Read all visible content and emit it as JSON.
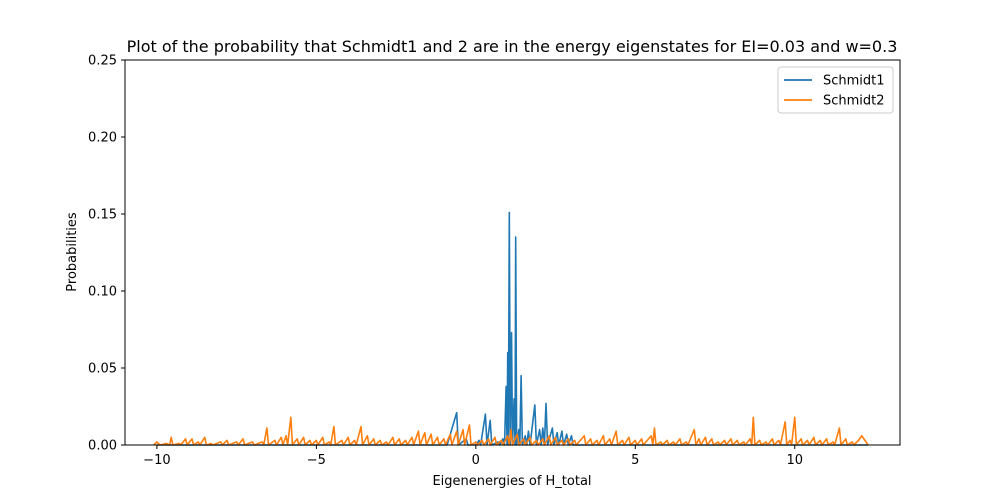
{
  "chart_data": {
    "type": "line",
    "title": "Plot of the probability that Schmidt1 and 2 are in the energy eigenstates for EI=0.03 and w=0.3",
    "xlabel": "Eigenenergies of H_total",
    "ylabel": "Probabilities",
    "xlim": [
      -11.0,
      13.3
    ],
    "ylim": [
      0,
      0.25
    ],
    "xticks": [
      -10,
      -5,
      0,
      5,
      10
    ],
    "xtick_labels": [
      "−10",
      "−5",
      "0",
      "5",
      "10"
    ],
    "yticks": [
      0.0,
      0.05,
      0.1,
      0.15,
      0.2,
      0.25
    ],
    "ytick_labels": [
      "0.00",
      "0.05",
      "0.10",
      "0.15",
      "0.20",
      "0.25"
    ],
    "grid": false,
    "legend_position": "top-right",
    "series": [
      {
        "name": "Schmidt1",
        "color": "#1f77b4",
        "points": [
          [
            -10.0,
            0.0
          ],
          [
            -6.0,
            0.0
          ],
          [
            -3.0,
            0.0
          ],
          [
            -1.5,
            0.0
          ],
          [
            -0.9,
            0.0
          ],
          [
            -0.6,
            0.021
          ],
          [
            -0.55,
            0.0
          ],
          [
            -0.3,
            0.004
          ],
          [
            -0.25,
            0.0
          ],
          [
            0.0,
            0.0
          ],
          [
            0.1,
            0.003
          ],
          [
            0.15,
            0.0
          ],
          [
            0.3,
            0.02
          ],
          [
            0.35,
            0.0
          ],
          [
            0.45,
            0.016
          ],
          [
            0.5,
            0.0
          ],
          [
            0.7,
            0.002
          ],
          [
            0.75,
            0.0
          ],
          [
            0.85,
            0.004
          ],
          [
            0.9,
            0.0
          ],
          [
            0.95,
            0.038
          ],
          [
            0.98,
            0.0
          ],
          [
            1.0,
            0.06
          ],
          [
            1.02,
            0.0
          ],
          [
            1.05,
            0.151
          ],
          [
            1.08,
            0.0
          ],
          [
            1.12,
            0.073
          ],
          [
            1.15,
            0.0
          ],
          [
            1.2,
            0.03
          ],
          [
            1.23,
            0.0
          ],
          [
            1.25,
            0.135
          ],
          [
            1.28,
            0.0
          ],
          [
            1.35,
            0.01
          ],
          [
            1.38,
            0.0
          ],
          [
            1.42,
            0.045
          ],
          [
            1.46,
            0.0
          ],
          [
            1.55,
            0.006
          ],
          [
            1.6,
            0.0
          ],
          [
            1.65,
            0.009
          ],
          [
            1.7,
            0.0
          ],
          [
            1.85,
            0.026
          ],
          [
            1.9,
            0.0
          ],
          [
            2.0,
            0.01
          ],
          [
            2.05,
            0.0
          ],
          [
            2.1,
            0.011
          ],
          [
            2.15,
            0.0
          ],
          [
            2.2,
            0.027
          ],
          [
            2.25,
            0.0
          ],
          [
            2.4,
            0.011
          ],
          [
            2.45,
            0.0
          ],
          [
            2.55,
            0.008
          ],
          [
            2.6,
            0.0
          ],
          [
            2.7,
            0.009
          ],
          [
            2.75,
            0.0
          ],
          [
            2.85,
            0.007
          ],
          [
            2.9,
            0.0
          ],
          [
            3.0,
            0.006
          ],
          [
            3.05,
            0.0
          ],
          [
            3.4,
            0.0
          ],
          [
            4.0,
            0.0
          ],
          [
            8.0,
            0.0
          ],
          [
            12.3,
            0.0
          ]
        ]
      },
      {
        "name": "Schmidt2",
        "color": "#ff7f0e",
        "points": [
          [
            -10.1,
            0.0
          ],
          [
            -10.0,
            0.002
          ],
          [
            -9.9,
            0.0
          ],
          [
            -9.7,
            0.001
          ],
          [
            -9.6,
            0.0
          ],
          [
            -9.55,
            0.005
          ],
          [
            -9.5,
            0.0
          ],
          [
            -9.3,
            0.001
          ],
          [
            -9.25,
            0.0
          ],
          [
            -9.1,
            0.004
          ],
          [
            -9.05,
            0.0
          ],
          [
            -8.9,
            0.004
          ],
          [
            -8.85,
            0.0
          ],
          [
            -8.7,
            0.002
          ],
          [
            -8.65,
            0.0
          ],
          [
            -8.5,
            0.005
          ],
          [
            -8.45,
            0.0
          ],
          [
            -8.3,
            0.001
          ],
          [
            -8.25,
            0.0
          ],
          [
            -8.0,
            0.002
          ],
          [
            -7.95,
            0.0
          ],
          [
            -7.8,
            0.003
          ],
          [
            -7.75,
            0.0
          ],
          [
            -7.5,
            0.002
          ],
          [
            -7.45,
            0.0
          ],
          [
            -7.3,
            0.004
          ],
          [
            -7.25,
            0.0
          ],
          [
            -7.0,
            0.002
          ],
          [
            -6.95,
            0.0
          ],
          [
            -6.7,
            0.002
          ],
          [
            -6.65,
            0.0
          ],
          [
            -6.55,
            0.011
          ],
          [
            -6.5,
            0.0
          ],
          [
            -6.3,
            0.003
          ],
          [
            -6.25,
            0.0
          ],
          [
            -6.1,
            0.005
          ],
          [
            -6.05,
            0.0
          ],
          [
            -5.95,
            0.006
          ],
          [
            -5.9,
            0.0
          ],
          [
            -5.8,
            0.018
          ],
          [
            -5.75,
            0.0
          ],
          [
            -5.6,
            0.004
          ],
          [
            -5.55,
            0.0
          ],
          [
            -5.4,
            0.005
          ],
          [
            -5.35,
            0.0
          ],
          [
            -5.2,
            0.003
          ],
          [
            -5.15,
            0.0
          ],
          [
            -5.0,
            0.003
          ],
          [
            -4.95,
            0.0
          ],
          [
            -4.8,
            0.005
          ],
          [
            -4.75,
            0.0
          ],
          [
            -4.6,
            0.002
          ],
          [
            -4.55,
            0.0
          ],
          [
            -4.45,
            0.012
          ],
          [
            -4.4,
            0.0
          ],
          [
            -4.2,
            0.003
          ],
          [
            -4.15,
            0.0
          ],
          [
            -4.0,
            0.005
          ],
          [
            -3.95,
            0.0
          ],
          [
            -3.8,
            0.003
          ],
          [
            -3.75,
            0.0
          ],
          [
            -3.6,
            0.012
          ],
          [
            -3.55,
            0.0
          ],
          [
            -3.4,
            0.006
          ],
          [
            -3.35,
            0.0
          ],
          [
            -3.2,
            0.004
          ],
          [
            -3.15,
            0.0
          ],
          [
            -3.0,
            0.003
          ],
          [
            -2.95,
            0.0
          ],
          [
            -2.8,
            0.002
          ],
          [
            -2.75,
            0.0
          ],
          [
            -2.6,
            0.005
          ],
          [
            -2.55,
            0.0
          ],
          [
            -2.4,
            0.004
          ],
          [
            -2.35,
            0.0
          ],
          [
            -2.2,
            0.003
          ],
          [
            -2.15,
            0.0
          ],
          [
            -2.0,
            0.005
          ],
          [
            -1.95,
            0.0
          ],
          [
            -1.8,
            0.009
          ],
          [
            -1.75,
            0.0
          ],
          [
            -1.6,
            0.008
          ],
          [
            -1.55,
            0.0
          ],
          [
            -1.4,
            0.007
          ],
          [
            -1.35,
            0.0
          ],
          [
            -1.2,
            0.005
          ],
          [
            -1.15,
            0.0
          ],
          [
            -1.0,
            0.004
          ],
          [
            -0.95,
            0.0
          ],
          [
            -0.8,
            0.007
          ],
          [
            -0.75,
            0.0
          ],
          [
            -0.6,
            0.009
          ],
          [
            -0.55,
            0.0
          ],
          [
            -0.4,
            0.01
          ],
          [
            -0.35,
            0.0
          ],
          [
            -0.2,
            0.013
          ],
          [
            -0.15,
            0.0
          ],
          [
            0.0,
            0.002
          ],
          [
            0.05,
            0.0
          ],
          [
            0.2,
            0.003
          ],
          [
            0.25,
            0.0
          ],
          [
            0.4,
            0.004
          ],
          [
            0.45,
            0.0
          ],
          [
            0.6,
            0.005
          ],
          [
            0.65,
            0.0
          ],
          [
            0.8,
            0.003
          ],
          [
            0.85,
            0.0
          ],
          [
            1.0,
            0.006
          ],
          [
            1.05,
            0.0
          ],
          [
            1.1,
            0.01
          ],
          [
            1.15,
            0.0
          ],
          [
            1.3,
            0.007
          ],
          [
            1.35,
            0.0
          ],
          [
            1.5,
            0.004
          ],
          [
            1.55,
            0.0
          ],
          [
            1.7,
            0.005
          ],
          [
            1.75,
            0.0
          ],
          [
            1.9,
            0.003
          ],
          [
            1.95,
            0.0
          ],
          [
            2.1,
            0.004
          ],
          [
            2.15,
            0.0
          ],
          [
            2.3,
            0.006
          ],
          [
            2.35,
            0.0
          ],
          [
            2.5,
            0.005
          ],
          [
            2.55,
            0.0
          ],
          [
            2.7,
            0.003
          ],
          [
            2.75,
            0.0
          ],
          [
            2.9,
            0.004
          ],
          [
            2.95,
            0.0
          ],
          [
            3.1,
            0.003
          ],
          [
            3.15,
            0.0
          ],
          [
            3.4,
            0.006
          ],
          [
            3.45,
            0.0
          ],
          [
            3.6,
            0.004
          ],
          [
            3.65,
            0.0
          ],
          [
            3.8,
            0.003
          ],
          [
            3.85,
            0.0
          ],
          [
            4.0,
            0.006
          ],
          [
            4.05,
            0.0
          ],
          [
            4.2,
            0.004
          ],
          [
            4.25,
            0.0
          ],
          [
            4.4,
            0.009
          ],
          [
            4.45,
            0.0
          ],
          [
            4.6,
            0.003
          ],
          [
            4.65,
            0.0
          ],
          [
            4.8,
            0.005
          ],
          [
            4.85,
            0.0
          ],
          [
            5.0,
            0.003
          ],
          [
            5.05,
            0.0
          ],
          [
            5.2,
            0.004
          ],
          [
            5.25,
            0.0
          ],
          [
            5.5,
            0.006
          ],
          [
            5.55,
            0.0
          ],
          [
            5.6,
            0.011
          ],
          [
            5.65,
            0.0
          ],
          [
            5.8,
            0.002
          ],
          [
            5.85,
            0.0
          ],
          [
            6.0,
            0.003
          ],
          [
            6.05,
            0.0
          ],
          [
            6.2,
            0.002
          ],
          [
            6.25,
            0.0
          ],
          [
            6.4,
            0.004
          ],
          [
            6.45,
            0.0
          ],
          [
            6.6,
            0.002
          ],
          [
            6.65,
            0.0
          ],
          [
            6.85,
            0.01
          ],
          [
            6.9,
            0.0
          ],
          [
            7.0,
            0.004
          ],
          [
            7.05,
            0.0
          ],
          [
            7.2,
            0.005
          ],
          [
            7.25,
            0.0
          ],
          [
            7.4,
            0.004
          ],
          [
            7.45,
            0.0
          ],
          [
            7.6,
            0.002
          ],
          [
            7.65,
            0.0
          ],
          [
            7.8,
            0.003
          ],
          [
            7.85,
            0.0
          ],
          [
            8.0,
            0.004
          ],
          [
            8.05,
            0.0
          ],
          [
            8.2,
            0.003
          ],
          [
            8.25,
            0.0
          ],
          [
            8.4,
            0.002
          ],
          [
            8.45,
            0.0
          ],
          [
            8.6,
            0.004
          ],
          [
            8.65,
            0.0
          ],
          [
            8.7,
            0.018
          ],
          [
            8.75,
            0.0
          ],
          [
            8.9,
            0.003
          ],
          [
            8.95,
            0.0
          ],
          [
            9.1,
            0.002
          ],
          [
            9.15,
            0.0
          ],
          [
            9.3,
            0.004
          ],
          [
            9.35,
            0.0
          ],
          [
            9.5,
            0.003
          ],
          [
            9.55,
            0.0
          ],
          [
            9.7,
            0.015
          ],
          [
            9.75,
            0.0
          ],
          [
            9.85,
            0.003
          ],
          [
            9.9,
            0.0
          ],
          [
            10.0,
            0.018
          ],
          [
            10.05,
            0.0
          ],
          [
            10.2,
            0.004
          ],
          [
            10.25,
            0.0
          ],
          [
            10.4,
            0.003
          ],
          [
            10.45,
            0.0
          ],
          [
            10.6,
            0.005
          ],
          [
            10.65,
            0.0
          ],
          [
            10.8,
            0.003
          ],
          [
            10.85,
            0.0
          ],
          [
            11.0,
            0.004
          ],
          [
            11.05,
            0.0
          ],
          [
            11.2,
            0.002
          ],
          [
            11.25,
            0.0
          ],
          [
            11.4,
            0.011
          ],
          [
            11.45,
            0.0
          ],
          [
            11.6,
            0.004
          ],
          [
            11.65,
            0.0
          ],
          [
            11.8,
            0.002
          ],
          [
            11.85,
            0.0
          ],
          [
            12.0,
            0.003
          ],
          [
            12.1,
            0.006
          ],
          [
            12.2,
            0.003
          ],
          [
            12.3,
            0.0
          ]
        ]
      }
    ]
  }
}
